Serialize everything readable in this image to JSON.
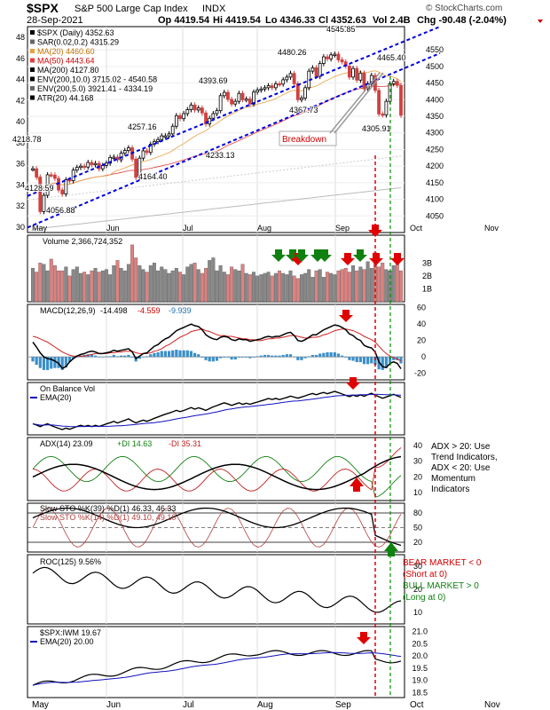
{
  "header": {
    "symbol": "$SPX",
    "name": "S&P 500 Large Cap Index",
    "exchange": "INDX",
    "date": "28-Sep-2021",
    "open": "Op 4419.54",
    "high": "Hi 4419.54",
    "low": "Lo 4346.33",
    "close": "Cl 4352.63",
    "vol": "Vol 2.4B",
    "chg": "Chg -90.48 (-2.04%)",
    "brand": "© StockCharts.com"
  },
  "colors": {
    "trend_line": "#0000e0",
    "breakdown_line": "#e00000",
    "signal_line": "#009000",
    "up_bar": "#d04040",
    "down_bar": "#707070",
    "volume_up": "#e08080",
    "volume_down": "#888888",
    "ma20": "#e8a040",
    "ma50": "#e04040",
    "ma200": "#000000",
    "macd_hist": "#3a8fc8",
    "arrow_red": "#e00000",
    "arrow_green": "#108010"
  },
  "x_axis": {
    "months": [
      "May",
      "Jun",
      "Jul",
      "Aug",
      "Sep",
      "Oct",
      "Nov"
    ]
  },
  "chart_data": [
    {
      "type": "candlestick",
      "panel": "price",
      "legend": [
        "$SPX (Daily) 4352.63",
        "SAR(0.02,0.2) 4315.29",
        "MA(20) 4460.60",
        "MA(50) 4443.64",
        "MA(200) 4127.80",
        "ENV(200,10.0) 3715.02 - 4540.58",
        "ENV(200,5.0) 3921.41 - 4334.19",
        "ATR(20) 44.168"
      ],
      "ylim": [
        4000,
        4620
      ],
      "left_axis": [
        "48",
        "46",
        "44",
        "42",
        "40",
        "38",
        "36",
        "34",
        "32",
        "30"
      ],
      "right_axis": [
        "4550",
        "4500",
        "4450",
        "4400",
        "4350",
        "4300",
        "4250",
        "4200",
        "4150",
        "4100",
        "4050"
      ],
      "annotations": [
        "4545.85",
        "4480.26",
        "4465.40",
        "4393.69",
        "4367.73",
        "4305.91",
        "4257.16",
        "4233.13",
        "4218.78",
        "4164.40",
        "4128.59",
        "4056.88",
        "Breakdown"
      ],
      "closes": [
        4192,
        4167,
        4063,
        4112,
        4174,
        4173,
        4163,
        4128,
        4116,
        4159,
        4156,
        4188,
        4196,
        4200,
        4197,
        4211,
        4204,
        4208,
        4192,
        4202,
        4209,
        4226,
        4227,
        4219,
        4239,
        4247,
        4255,
        4221,
        4166,
        4224,
        4246,
        4241,
        4266,
        4274,
        4280,
        4291,
        4291,
        4297,
        4320,
        4352,
        4343,
        4358,
        4370,
        4384,
        4369,
        4375,
        4360,
        4327,
        4344,
        4358,
        4367,
        4412,
        4422,
        4401,
        4387,
        4395,
        4419,
        4400,
        4402,
        4387,
        4423,
        4429,
        4432,
        4436,
        4442,
        4436,
        4448,
        4447,
        4460,
        4468,
        4479,
        4448,
        4400,
        4405,
        4436,
        4486,
        4496,
        4470,
        4509,
        4529,
        4523,
        4535,
        4537,
        4520,
        4514,
        4501,
        4468,
        4494,
        4459,
        4480,
        4433,
        4448,
        4473,
        4428,
        4357,
        4354,
        4395,
        4448,
        4455,
        4443,
        4353
      ]
    },
    {
      "type": "bar",
      "panel": "volume",
      "legend": "Volume 2,366,724,352",
      "axis": [
        "3B",
        "2B",
        "1B"
      ],
      "values": [
        2.6,
        2.3,
        3.0,
        2.9,
        2.4,
        3.3,
        2.8,
        2.4,
        2.4,
        2.7,
        2.0,
        2.5,
        2.7,
        2.2,
        2.3,
        2.1,
        2.4,
        2.6,
        2.3,
        2.4,
        2.5,
        2.1,
        2.8,
        3.2,
        2.6,
        2.4,
        2.9,
        4.4,
        3.4,
        2.8,
        2.5,
        2.3,
        2.8,
        3.0,
        2.4,
        2.7,
        2.5,
        2.2,
        2.4,
        2.6,
        2.3,
        2.1,
        2.7,
        2.9,
        3.0,
        2.5,
        2.2,
        2.6,
        3.2,
        3.4,
        2.4,
        2.8,
        2.3,
        2.1,
        2.7,
        2.5,
        2.4,
        2.9,
        2.2,
        2.1,
        2.3,
        2.0,
        2.1,
        2.2,
        2.3,
        2.0,
        2.2,
        2.4,
        2.2,
        2.1,
        2.4,
        2.0,
        1.8,
        2.1,
        2.2,
        2.5,
        1.9,
        2.4,
        2.5,
        1.9,
        2.3,
        2.2,
        2.1,
        2.4,
        2.5,
        2.6,
        2.3,
        2.8,
        2.4,
        2.7,
        2.5,
        3.1,
        2.6,
        3.8,
        2.7,
        3.0,
        2.5,
        2.4,
        2.8,
        3.3,
        2.4
      ]
    },
    {
      "type": "line",
      "panel": "macd",
      "legend": [
        "MACD(12,26,9)",
        "-14.498",
        "-4.559",
        "-9.939"
      ],
      "axis": [
        "60",
        "40",
        "20",
        "0",
        "-20"
      ],
      "macd": [
        18,
        12,
        5,
        0,
        -2,
        -3,
        -5,
        -8,
        -14,
        -12,
        -6,
        -2,
        1,
        3,
        4,
        6,
        7,
        6,
        4,
        4,
        5,
        6,
        8,
        7,
        8,
        9,
        10,
        6,
        -2,
        1,
        4,
        5,
        9,
        13,
        15,
        19,
        22,
        24,
        28,
        32,
        34,
        36,
        38,
        40,
        38,
        37,
        33,
        27,
        24,
        22,
        21,
        24,
        25,
        24,
        21,
        20,
        22,
        21,
        21,
        19,
        20,
        21,
        22,
        24,
        25,
        24,
        25,
        25,
        27,
        29,
        30,
        26,
        20,
        19,
        21,
        24,
        27,
        27,
        30,
        33,
        35,
        37,
        39,
        38,
        36,
        33,
        28,
        26,
        22,
        20,
        14,
        12,
        11,
        6,
        -6,
        -12,
        -13,
        -8,
        -6,
        -8,
        -14.5
      ],
      "signal": [
        25,
        24,
        22,
        20,
        18,
        15,
        12,
        9,
        6,
        4,
        2,
        1,
        1,
        1,
        1,
        2,
        3,
        4,
        4,
        4,
        4,
        5,
        5,
        6,
        6,
        7,
        7,
        7,
        5,
        4,
        4,
        4,
        5,
        7,
        8,
        10,
        13,
        15,
        18,
        21,
        24,
        26,
        28,
        31,
        32,
        33,
        34,
        32,
        31,
        29,
        27,
        26,
        26,
        25,
        25,
        24,
        23,
        22,
        22,
        21,
        21,
        20,
        20,
        21,
        22,
        22,
        23,
        23,
        24,
        25,
        26,
        26,
        25,
        24,
        23,
        23,
        24,
        24,
        25,
        27,
        28,
        30,
        32,
        33,
        34,
        34,
        33,
        32,
        30,
        28,
        25,
        23,
        21,
        18,
        13,
        8,
        4,
        1,
        -1,
        -3,
        -4.6
      ]
    },
    {
      "type": "line",
      "panel": "obv",
      "legend": [
        "On Balance Vol",
        "EMA(20)"
      ],
      "description": "OBV trending higher with EMA(20), falling at end"
    },
    {
      "type": "line",
      "panel": "adx",
      "legend": [
        "ADX(14) 23.09",
        "+DI 14.63",
        "-DI 35.31"
      ],
      "axis": [
        "40",
        "30",
        "20",
        "10"
      ],
      "note": [
        "ADX > 20: Use",
        "Trend Indicators,",
        "ADX < 20: Use",
        "Momentum",
        "Indicators"
      ]
    },
    {
      "type": "line",
      "panel": "stoch",
      "legend": [
        "Slow STO %K(39) %D(1) 46.33, 46.33",
        "Slow STO %K(14) %D(1) 49.10, 49.10"
      ],
      "axis": [
        "80",
        "50",
        "20"
      ]
    },
    {
      "type": "line",
      "panel": "roc",
      "legend": "ROC(125) 9.56%",
      "axis": [
        "30",
        "20",
        "10"
      ],
      "note": [
        "BEAR MARKET < 0",
        "(Short at 0)",
        "BULL MARKET > 0",
        "(Long at 0)"
      ]
    },
    {
      "type": "line",
      "panel": "ratio",
      "legend": [
        "$SPX:IWM 19.67",
        "EMA(20) 20.00"
      ],
      "axis": [
        "21.0",
        "20.5",
        "20.0",
        "19.5",
        "19.0",
        "18.5"
      ]
    }
  ]
}
